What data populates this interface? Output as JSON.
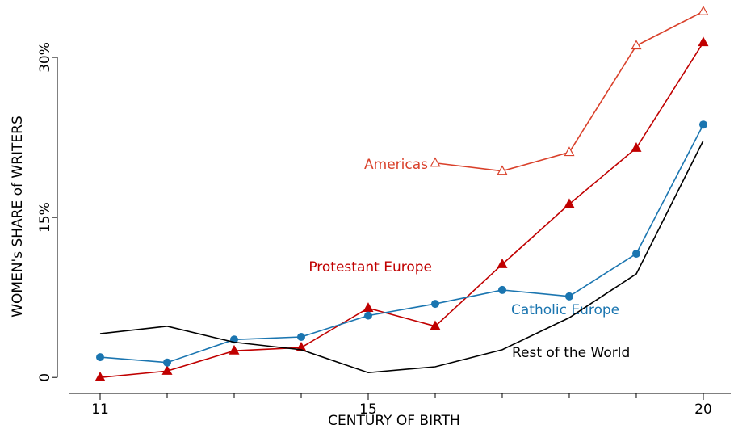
{
  "chart_data": {
    "type": "line",
    "xlabel": "CENTURY OF BIRTH",
    "ylabel": "WOMEN's SHARE of WRITERS",
    "x": [
      11,
      12,
      13,
      14,
      15,
      16,
      17,
      18,
      19,
      20
    ],
    "xlim": [
      10.53,
      20.41
    ],
    "xticks": [
      11,
      15,
      20
    ],
    "xminor_ticks": [
      12,
      13,
      14,
      16,
      17,
      18,
      19
    ],
    "ylim": [
      -1.5,
      35
    ],
    "yticks": [
      {
        "value": 0,
        "label": "0"
      },
      {
        "value": 15,
        "label": "15%"
      },
      {
        "value": 30,
        "label": "30%"
      }
    ],
    "series": [
      {
        "name": "Americas",
        "color": "#d9402a",
        "marker": "open-triangle",
        "values": [
          null,
          null,
          null,
          null,
          null,
          20.1,
          19.35,
          21.1,
          31.1,
          34.3
        ]
      },
      {
        "name": "Protestant Europe",
        "color": "#c00000",
        "marker": "triangle",
        "values": [
          0,
          0.6,
          2.5,
          2.8,
          6.5,
          4.8,
          10.6,
          16.25,
          21.5,
          31.4
        ]
      },
      {
        "name": "Catholic Europe",
        "color": "#1a75b0",
        "marker": "circle",
        "values": [
          1.9,
          1.4,
          3.55,
          3.8,
          5.8,
          6.9,
          8.2,
          7.6,
          11.6,
          23.7
        ]
      },
      {
        "name": "Rest of the World",
        "color": "#000000",
        "marker": "none",
        "values": [
          4.1,
          4.8,
          3.3,
          2.6,
          0.45,
          1.0,
          2.6,
          5.6,
          9.7,
          22.2
        ]
      }
    ]
  }
}
